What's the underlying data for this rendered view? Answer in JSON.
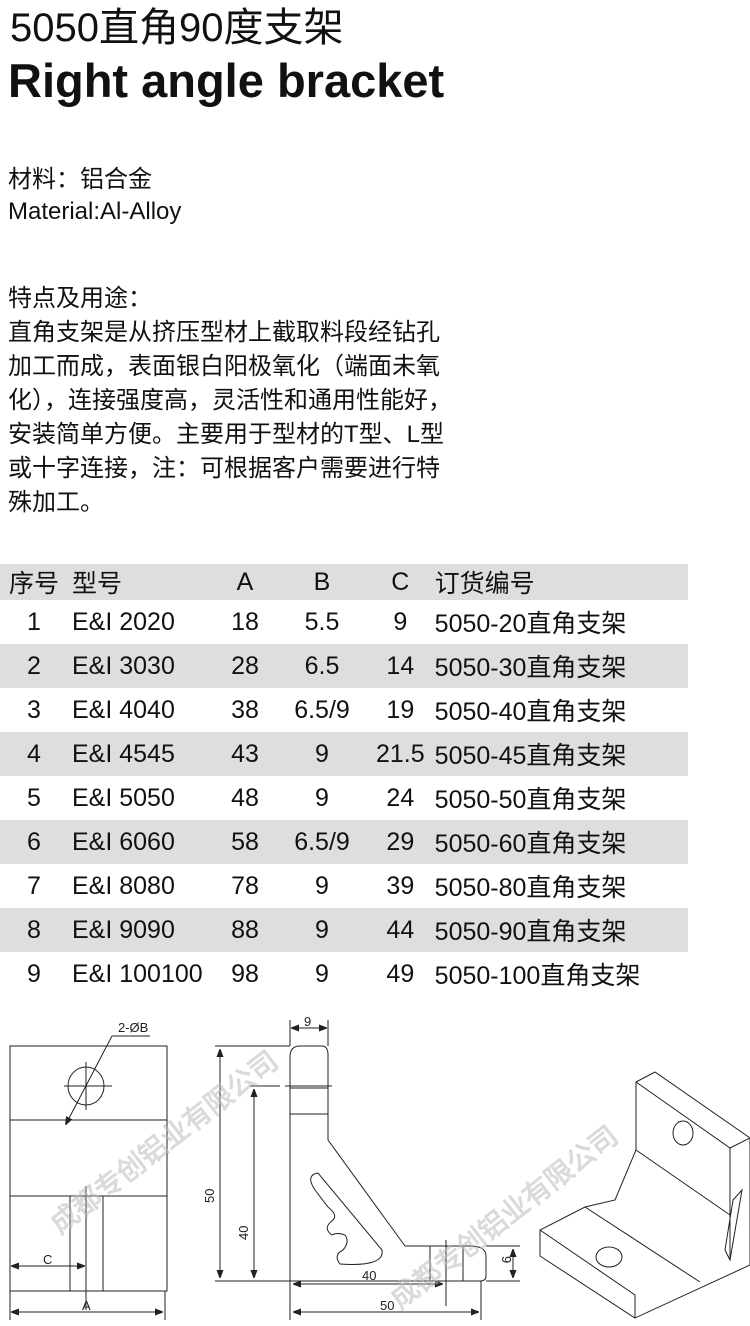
{
  "title_cn": "5050直角90度支架",
  "title_en": "Right angle bracket",
  "material_cn": "材料：铝合金",
  "material_en": "Material:Al-Alloy",
  "features_heading": "特点及用途：",
  "features_lines": [
    "直角支架是从挤压型材上截取料段经钻孔",
    "加工而成，表面银白阳极氧化（端面未氧",
    "化），连接强度高，灵活性和通用性能好，",
    "安装简单方便。主要用于型材的T型、L型",
    "或十字连接，注：可根据客户需要进行特",
    "殊加工。"
  ],
  "table": {
    "headers": [
      "序号",
      "型号",
      "A",
      "B",
      "C",
      "订货编号"
    ],
    "rows": [
      [
        "1",
        "E&I 2020",
        "18",
        "5.5",
        "9",
        "5050-20直角支架"
      ],
      [
        "2",
        "E&I 3030",
        "28",
        "6.5",
        "14",
        "5050-30直角支架"
      ],
      [
        "3",
        "E&I 4040",
        "38",
        "6.5/9",
        "19",
        "5050-40直角支架"
      ],
      [
        "4",
        "E&I 4545",
        "43",
        "9",
        "21.5",
        "5050-45直角支架"
      ],
      [
        "5",
        "E&I 5050",
        "48",
        "9",
        "24",
        "5050-50直角支架"
      ],
      [
        "6",
        "E&I 6060",
        "58",
        "6.5/9",
        "29",
        "5050-60直角支架"
      ],
      [
        "7",
        "E&I 8080",
        "78",
        "9",
        "39",
        "5050-80直角支架"
      ],
      [
        "8",
        "E&I 9090",
        "88",
        "9",
        "44",
        "5050-90直角支架"
      ],
      [
        "9",
        "E&I 100100",
        "98",
        "9",
        "49",
        "5050-100直角支架"
      ]
    ]
  },
  "drawing": {
    "hole_label": "2-ØB",
    "dim_C": "C",
    "dim_A": "A",
    "dim_9_top": "9",
    "dim_50_v": "50",
    "dim_40_v": "40",
    "dim_9_side": "9",
    "dim_40_h": "40",
    "dim_50_h": "50"
  },
  "watermark": "成都专创铝业有限公司"
}
